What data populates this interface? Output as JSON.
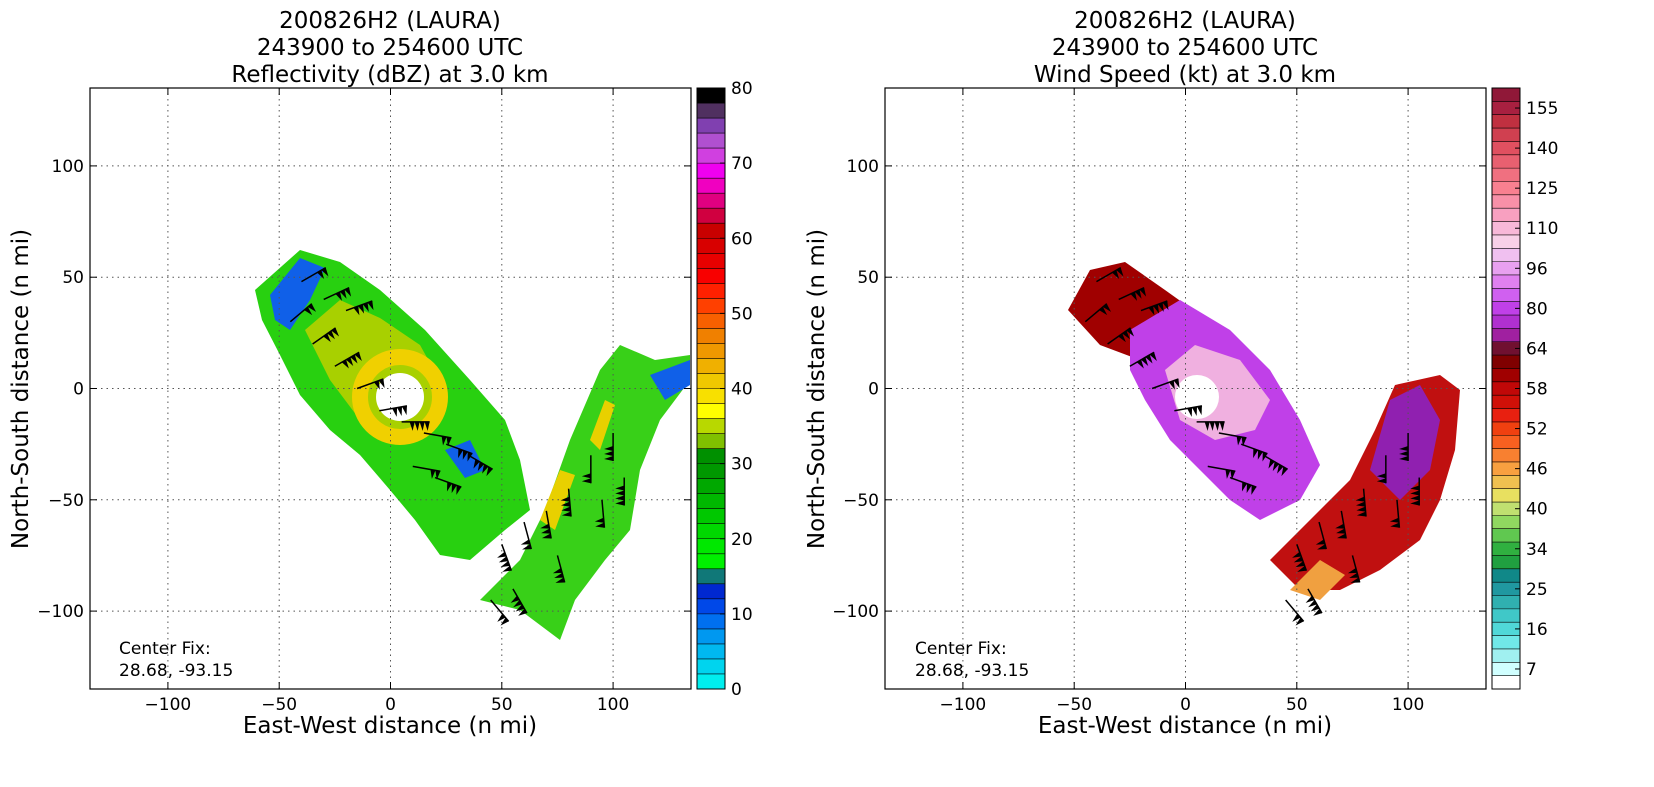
{
  "chart_data": [
    {
      "type": "heatmap",
      "title_lines": [
        "200826H2 (LAURA)",
        "243900 to 254600 UTC",
        "Reflectivity (dBZ) at 3.0 km"
      ],
      "xlabel": "East-West distance (n mi)",
      "ylabel": "North-South distance (n mi)",
      "xlim": [
        -135,
        135
      ],
      "ylim": [
        -135,
        135
      ],
      "xticks": [
        -100,
        -50,
        0,
        50,
        100
      ],
      "yticks": [
        -100,
        -50,
        0,
        50,
        100
      ],
      "grid": true,
      "annotation": [
        "Center Fix:",
        "28.68, -93.15"
      ],
      "colorbar": {
        "min": 0,
        "max": 80,
        "tick_labels": [
          "0",
          "10",
          "20",
          "30",
          "40",
          "50",
          "60",
          "70",
          "80"
        ],
        "tick_values": [
          0,
          10,
          20,
          30,
          40,
          50,
          60,
          70,
          80
        ],
        "colors": [
          "#00eeee",
          "#00d4ee",
          "#00b8f0",
          "#0098f0",
          "#0070f0",
          "#0048e8",
          "#0028d0",
          "#107878",
          "#00f000",
          "#00e800",
          "#00d800",
          "#00c800",
          "#00b800",
          "#00a800",
          "#009800",
          "#009000",
          "#80c000",
          "#b8d800",
          "#ffff00",
          "#f8e000",
          "#f0c800",
          "#f0b000",
          "#f09800",
          "#f08000",
          "#f86000",
          "#ff4000",
          "#ff2000",
          "#f80000",
          "#e80000",
          "#d80000",
          "#c80000",
          "#d00040",
          "#e00080",
          "#f000c0",
          "#f000f0",
          "#d040e0",
          "#b050d0",
          "#8040b0",
          "#503060",
          "#000000"
        ]
      }
    },
    {
      "type": "heatmap",
      "title_lines": [
        "200826H2 (LAURA)",
        "243900 to 254600 UTC",
        "Wind Speed (kt) at 3.0 km"
      ],
      "xlabel": "East-West distance (n mi)",
      "ylabel": "North-South distance (n mi)",
      "xlim": [
        -135,
        135
      ],
      "ylim": [
        -135,
        135
      ],
      "xticks": [
        -100,
        -50,
        0,
        50,
        100
      ],
      "yticks": [
        -100,
        -50,
        0,
        50,
        100
      ],
      "grid": true,
      "annotation": [
        "Center Fix:",
        "28.68, -93.15"
      ],
      "colorbar": {
        "tick_labels": [
          "7",
          "16",
          "25",
          "34",
          "40",
          "46",
          "52",
          "58",
          "64",
          "80",
          "96",
          "110",
          "125",
          "140",
          "155"
        ],
        "colors": [
          "#ffffff",
          "#d0ffff",
          "#a0f0f0",
          "#70e8e8",
          "#50d8d8",
          "#40c8c8",
          "#30b0b0",
          "#2098a0",
          "#108888",
          "#20a040",
          "#30b040",
          "#60c850",
          "#90d860",
          "#c0e070",
          "#e8e060",
          "#f0c050",
          "#f8a040",
          "#f88030",
          "#f86020",
          "#f04010",
          "#e82010",
          "#d01008",
          "#c00808",
          "#a00000",
          "#800000",
          "#701030",
          "#a020a0",
          "#b030d0",
          "#c040e8",
          "#d060f0",
          "#e080f0",
          "#e8a0f0",
          "#f0c0f0",
          "#f8d0e8",
          "#f8b8d8",
          "#f8a0c0",
          "#f890a8",
          "#f88090",
          "#f07080",
          "#e86070",
          "#e05060",
          "#d04050",
          "#c03040",
          "#a82040",
          "#901838"
        ]
      }
    }
  ]
}
